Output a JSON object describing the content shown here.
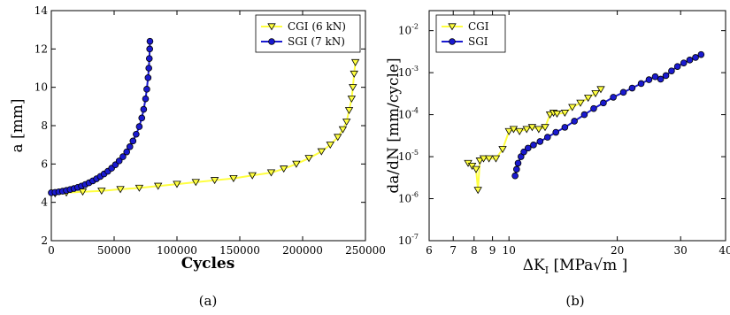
{
  "chart_data": [
    {
      "panel": "(a)",
      "type": "scatter",
      "title": "",
      "xlabel": "Cycles",
      "ylabel": "a [mm]",
      "xlim": [
        0,
        250000
      ],
      "ylim": [
        2,
        14
      ],
      "xticks": [
        0,
        50000,
        100000,
        150000,
        200000,
        250000
      ],
      "xtick_labels": [
        "0",
        "50000",
        "100000",
        "150000",
        "200000",
        "250000"
      ],
      "yticks": [
        2,
        4,
        6,
        8,
        10,
        12,
        14
      ],
      "ytick_labels": [
        "2",
        "4",
        "6",
        "8",
        "10",
        "12",
        "14"
      ],
      "grid": false,
      "legend": "top-right",
      "series": [
        {
          "name": "CGI (6 kN)",
          "marker": "triangle-down",
          "color": "#ffff40",
          "edge_color": "#000000",
          "x": [
            3000,
            12000,
            25000,
            40000,
            55000,
            70000,
            85000,
            100000,
            115000,
            130000,
            145000,
            160000,
            175000,
            185000,
            195000,
            205000,
            215000,
            222000,
            228000,
            232000,
            235000,
            237000,
            239000,
            240000,
            241000,
            242000
          ],
          "y": [
            4.45,
            4.5,
            4.55,
            4.6,
            4.68,
            4.75,
            4.85,
            4.95,
            5.05,
            5.15,
            5.25,
            5.4,
            5.55,
            5.75,
            6.0,
            6.3,
            6.65,
            7.0,
            7.4,
            7.8,
            8.2,
            8.8,
            9.4,
            10.0,
            10.7,
            11.3
          ]
        },
        {
          "name": "SGI (7 kN)",
          "marker": "circle",
          "color": "#1a1ad0",
          "edge_color": "#000000",
          "x": [
            0,
            3000,
            6000,
            9000,
            12000,
            15000,
            18000,
            21000,
            24000,
            27000,
            30000,
            33000,
            36000,
            39000,
            42000,
            45000,
            48000,
            51000,
            54000,
            57000,
            60000,
            62500,
            65000,
            67500,
            70000,
            72000,
            73500,
            75000,
            76000,
            77000,
            77600,
            78000,
            78300,
            78500
          ],
          "y": [
            4.5,
            4.52,
            4.55,
            4.58,
            4.62,
            4.67,
            4.72,
            4.78,
            4.85,
            4.93,
            5.02,
            5.12,
            5.23,
            5.35,
            5.48,
            5.62,
            5.78,
            5.96,
            6.16,
            6.38,
            6.63,
            6.9,
            7.2,
            7.55,
            7.95,
            8.4,
            8.85,
            9.4,
            9.9,
            10.5,
            11.0,
            11.5,
            12.0,
            12.4
          ]
        }
      ]
    },
    {
      "panel": "(b)",
      "type": "scatter",
      "title": "",
      "xlabel": "ΔK_I [MPa√m ]",
      "ylabel": "da/dN [mm/cycle]",
      "xscale": "log",
      "yscale": "log",
      "xlim": [
        6,
        40
      ],
      "ylim": [
        1e-07,
        0.03
      ],
      "xticks": [
        6,
        7,
        8,
        9,
        10,
        20,
        30,
        40
      ],
      "xtick_labels": [
        "6",
        "7",
        "8",
        "9",
        "10",
        "20",
        "30",
        "40"
      ],
      "yticks": [
        1e-07,
        1e-06,
        1e-05,
        0.0001,
        0.001,
        0.01
      ],
      "ytick_labels": [
        "10-7",
        "10-6",
        "10-5",
        "10-4",
        "10-3",
        "10-2"
      ],
      "grid": false,
      "legend": "top-left",
      "series": [
        {
          "name": "CGI",
          "marker": "triangle-down",
          "color": "#ffff40",
          "edge_color": "#000000",
          "x": [
            7.7,
            7.9,
            8.1,
            8.2,
            8.3,
            8.5,
            8.8,
            9.2,
            9.6,
            10.0,
            10.3,
            10.7,
            11.2,
            11.6,
            12.1,
            12.6,
            13.0,
            13.3,
            13.6,
            14.3,
            15.0,
            15.8,
            16.6,
            17.4,
            18.0
          ],
          "y": [
            7e-06,
            6e-06,
            5e-06,
            1.6e-06,
            8e-06,
            9e-06,
            9e-06,
            9e-06,
            1.5e-05,
            4e-05,
            4.5e-05,
            4e-05,
            4.5e-05,
            5e-05,
            4.5e-05,
            5e-05,
            0.0001,
            0.00011,
            0.000105,
            0.00011,
            0.00015,
            0.00019,
            0.00025,
            0.00032,
            0.0004
          ]
        },
        {
          "name": "SGI",
          "marker": "circle",
          "color": "#1a1ad0",
          "edge_color": "#000000",
          "x": [
            10.4,
            10.5,
            10.6,
            10.8,
            11.0,
            11.3,
            11.7,
            12.2,
            12.8,
            13.5,
            14.3,
            15.2,
            16.2,
            17.2,
            18.3,
            19.5,
            20.8,
            22.0,
            23.3,
            24.5,
            25.5,
            26.4,
            27.3,
            28.3,
            29.4,
            30.6,
            31.8,
            33.0,
            34.2
          ],
          "y": [
            3.5e-06,
            5e-06,
            7e-06,
            1e-05,
            1.3e-05,
            1.6e-05,
            1.9e-05,
            2.3e-05,
            2.9e-05,
            3.8e-05,
            5e-05,
            7e-05,
            0.0001,
            0.00014,
            0.00019,
            0.00026,
            0.00034,
            0.00043,
            0.00055,
            0.00068,
            0.0008,
            0.0007,
            0.00085,
            0.0011,
            0.0014,
            0.0017,
            0.002,
            0.0023,
            0.0027
          ]
        }
      ]
    }
  ],
  "figure": {
    "caption_a": "(a)",
    "caption_b": "(b)",
    "ylabel_b_main": "da/dN [mm/cycle]",
    "xlabel_b_delta": "ΔK",
    "xlabel_b_sub": "I",
    "xlabel_b_rest": " [MPa√m ]"
  }
}
